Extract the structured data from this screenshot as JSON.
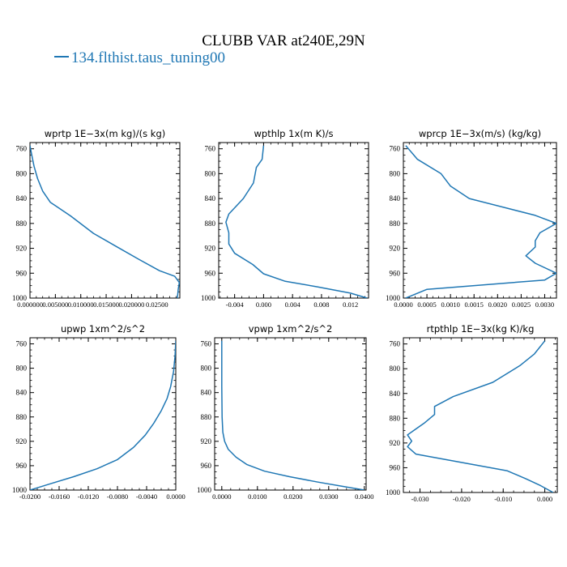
{
  "figure": {
    "title": "CLUBB VAR at240E,29N",
    "legend_label": "134.flthist.taus_tuning00",
    "series_color": "#1f77b4"
  },
  "chart_data": [
    {
      "type": "line",
      "title": "wprtp   1E−3x(m kg)/(s kg)",
      "xlim": [
        0,
        0.0295
      ],
      "ylim": [
        1000,
        750
      ],
      "xticks": [
        0,
        0.005,
        0.01,
        0.015,
        0.02,
        0.025
      ],
      "xtick_labels": [
        "0.000000",
        "0.005000",
        "0.010000",
        "0.015000",
        "0.020000",
        "0.02500"
      ],
      "yticks": [
        760,
        800,
        840,
        880,
        920,
        960,
        1000
      ],
      "series": [
        {
          "x": [
            0.0,
            0.0003,
            0.0008,
            0.0015,
            0.0025,
            0.004,
            0.008,
            0.0125,
            0.017,
            0.0215,
            0.0255,
            0.0285,
            0.0294,
            0.0292,
            0.0291,
            0.029
          ],
          "y": [
            755,
            768,
            788,
            808,
            828,
            846,
            868,
            896,
            917,
            938,
            956,
            965,
            975,
            985,
            993,
            1000
          ]
        }
      ]
    },
    {
      "type": "line",
      "title": "wpthlp   1x(m K)/s",
      "xlim": [
        -0.0062,
        0.0145
      ],
      "ylim": [
        1000,
        750
      ],
      "xticks": [
        -0.004,
        0,
        0.004,
        0.008,
        0.012
      ],
      "xtick_labels": [
        "-0.004",
        "0.000",
        "0.004",
        "0.008",
        "0.012"
      ],
      "yticks": [
        760,
        800,
        840,
        880,
        920,
        960,
        1000
      ],
      "series": [
        {
          "x": [
            0.0,
            -0.0002,
            -0.001,
            -0.0014,
            -0.0028,
            -0.0048,
            -0.0052,
            -0.0048,
            -0.0048,
            -0.004,
            -0.0015,
            0.0,
            0.003,
            0.0075,
            0.012,
            0.0143
          ],
          "y": [
            755,
            777,
            790,
            815,
            840,
            865,
            878,
            895,
            913,
            928,
            946,
            961,
            973,
            982,
            992,
            1000
          ]
        }
      ]
    },
    {
      "type": "line",
      "title": "wprcp   1E−3x(m/s) (kg/kg)",
      "xlim": [
        0,
        0.00325
      ],
      "ylim": [
        1000,
        750
      ],
      "xticks": [
        0,
        0.0005,
        0.001,
        0.0015,
        0.002,
        0.0025,
        0.003
      ],
      "xtick_labels": [
        "0.0000",
        "0.0005",
        "0.0010",
        "0.0015",
        "0.0020",
        "0.0025",
        "0.0030"
      ],
      "yticks": [
        760,
        800,
        840,
        880,
        920,
        960,
        1000
      ],
      "series": [
        {
          "x": [
            5e-05,
            0.0003,
            0.0008,
            0.001,
            0.0014,
            0.0028,
            0.00325,
            0.0029,
            0.0028,
            0.0028,
            0.0026,
            0.0028,
            0.00325,
            0.003,
            0.0005,
            5e-05
          ],
          "y": [
            755,
            777,
            800,
            820,
            840,
            867,
            880,
            895,
            908,
            918,
            932,
            944,
            960,
            971,
            986,
            1000
          ]
        }
      ]
    },
    {
      "type": "line",
      "title": "upwp   1xm^2/s^2",
      "xlim": [
        -0.02,
        0
      ],
      "ylim": [
        1000,
        750
      ],
      "xticks": [
        -0.02,
        -0.016,
        -0.012,
        -0.008,
        -0.004,
        0
      ],
      "xtick_labels": [
        "-0.0200",
        "-0.0160",
        "-0.0120",
        "-0.0080",
        "-0.0040",
        "0.0000"
      ],
      "yticks": [
        760,
        800,
        840,
        880,
        920,
        960,
        1000
      ],
      "series": [
        {
          "x": [
            0.0,
            -0.0001,
            -0.0003,
            -0.0007,
            -0.0012,
            -0.002,
            -0.003,
            -0.0042,
            -0.0058,
            -0.008,
            -0.0108,
            -0.014,
            -0.017,
            -0.02
          ],
          "y": [
            755,
            780,
            805,
            830,
            850,
            870,
            890,
            910,
            930,
            950,
            965,
            978,
            989,
            1000
          ]
        }
      ]
    },
    {
      "type": "line",
      "title": "vpwp   1xm^2/s^2",
      "xlim": [
        -0.002,
        0.0405
      ],
      "ylim": [
        1000,
        750
      ],
      "xticks": [
        0,
        0.01,
        0.02,
        0.03,
        0.04
      ],
      "xtick_labels": [
        "0.0000",
        "0.0100",
        "0.0200",
        "0.0300",
        "0.0400"
      ],
      "yticks": [
        760,
        800,
        840,
        880,
        920,
        960,
        1000
      ],
      "series": [
        {
          "x": [
            0.0,
            0.0,
            0.0001,
            0.0003,
            0.0008,
            0.0018,
            0.004,
            0.007,
            0.012,
            0.019,
            0.027,
            0.034,
            0.04
          ],
          "y": [
            755,
            830,
            880,
            905,
            920,
            933,
            946,
            958,
            969,
            978,
            987,
            994,
            1000
          ]
        }
      ]
    },
    {
      "type": "line",
      "title": "rtpthlp   1E−3x(kg K)/kg",
      "xlim": [
        -0.034,
        0.003
      ],
      "ylim": [
        1000,
        750
      ],
      "xticks": [
        -0.03,
        -0.02,
        -0.01,
        0
      ],
      "xtick_labels": [
        "-0.030",
        "-0.020",
        "-0.010",
        "0.000"
      ],
      "yticks": [
        760,
        800,
        840,
        880,
        920,
        960,
        1000
      ],
      "series": [
        {
          "x": [
            0.0,
            -0.0025,
            -0.006,
            -0.0125,
            -0.022,
            -0.0265,
            -0.0265,
            -0.029,
            -0.033,
            -0.032,
            -0.033,
            -0.031,
            -0.009,
            -0.0045,
            -0.001,
            0.002
          ],
          "y": [
            755,
            776,
            795,
            822,
            845,
            861,
            874,
            888,
            907,
            917,
            926,
            938,
            965,
            978,
            989,
            1000
          ]
        }
      ]
    }
  ]
}
